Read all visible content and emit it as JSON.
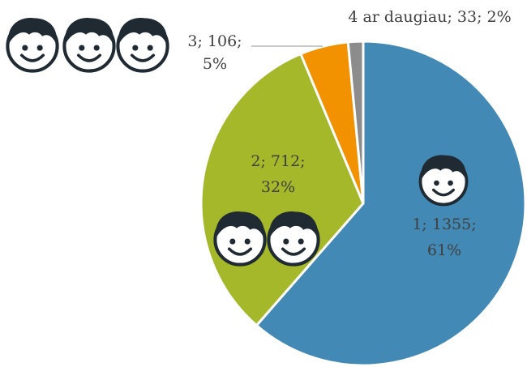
{
  "chart_data": {
    "type": "pie",
    "values": [
      1355,
      712,
      106,
      33
    ],
    "value_labels": [
      [
        "1; 1355;",
        "61%"
      ],
      [
        "2; 712;",
        "32%"
      ],
      [
        "3; 106;",
        "5%"
      ],
      [
        "4 ar daugiau; 33; 2%"
      ]
    ],
    "colors": [
      "#4389b5",
      "#a5b82a",
      "#f39200",
      "#8c8c8c"
    ]
  }
}
